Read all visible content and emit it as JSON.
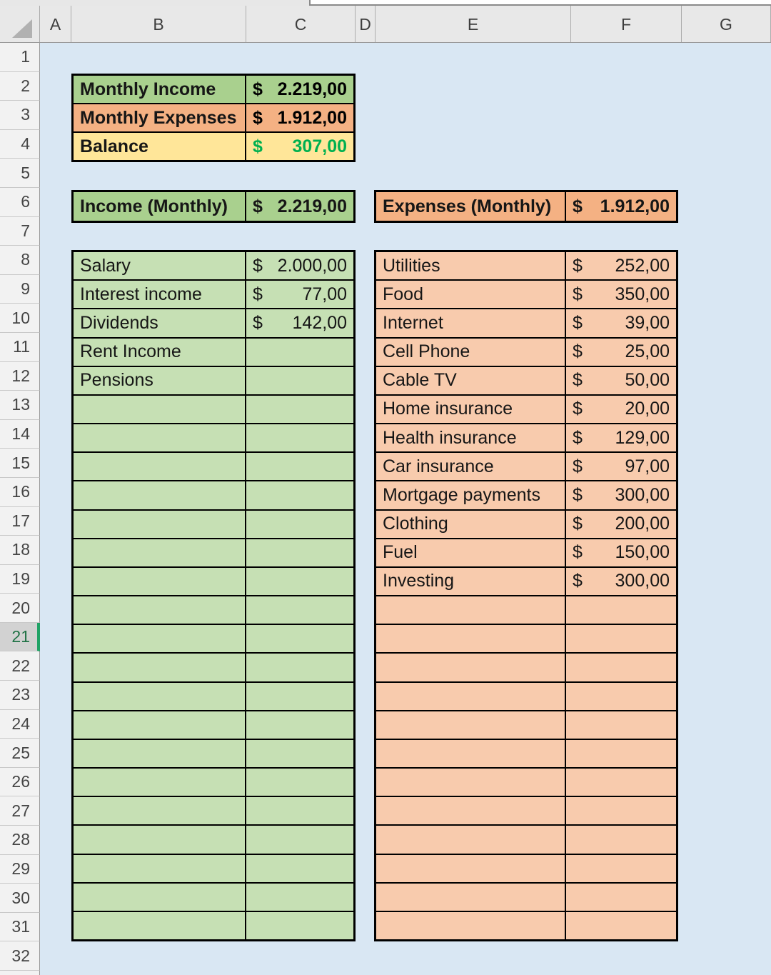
{
  "grid": {
    "column_labels": [
      "A",
      "B",
      "C",
      "D",
      "E",
      "F",
      "G"
    ],
    "row_labels": [
      "1",
      "2",
      "3",
      "4",
      "5",
      "6",
      "7",
      "8",
      "9",
      "10",
      "11",
      "12",
      "13",
      "14",
      "15",
      "16",
      "17",
      "18",
      "19",
      "20",
      "21",
      "22",
      "23",
      "24",
      "25",
      "26",
      "27",
      "28",
      "29",
      "30",
      "31",
      "32"
    ],
    "selected_row": "21"
  },
  "summary": {
    "rows": [
      {
        "label": "Monthly Income",
        "currency": "$",
        "value": "2.219,00",
        "bg": "#a9d08e",
        "value_color": "#000000"
      },
      {
        "label": "Monthly Expenses",
        "currency": "$",
        "value": "1.912,00",
        "bg": "#f4b183",
        "value_color": "#000000"
      },
      {
        "label": "Balance",
        "currency": "$",
        "value": "307,00",
        "bg": "#ffe699",
        "value_color": "#00b050"
      }
    ]
  },
  "income": {
    "header": {
      "label": "Income (Monthly)",
      "currency": "$",
      "value": "2.219,00"
    },
    "row_count": 24,
    "items": [
      {
        "label": "Salary",
        "currency": "$",
        "value": "2.000,00"
      },
      {
        "label": "Interest income",
        "currency": "$",
        "value": "77,00"
      },
      {
        "label": "Dividends",
        "currency": "$",
        "value": "142,00"
      },
      {
        "label": "Rent Income",
        "currency": "",
        "value": ""
      },
      {
        "label": "Pensions",
        "currency": "",
        "value": ""
      }
    ]
  },
  "expenses": {
    "header": {
      "label": "Expenses (Monthly)",
      "currency": "$",
      "value": "1.912,00"
    },
    "row_count": 24,
    "items": [
      {
        "label": "Utilities",
        "currency": "$",
        "value": "252,00"
      },
      {
        "label": "Food",
        "currency": "$",
        "value": "350,00"
      },
      {
        "label": "Internet",
        "currency": "$",
        "value": "39,00"
      },
      {
        "label": "Cell Phone",
        "currency": "$",
        "value": "25,00"
      },
      {
        "label": "Cable TV",
        "currency": "$",
        "value": "50,00"
      },
      {
        "label": "Home insurance",
        "currency": "$",
        "value": "20,00"
      },
      {
        "label": "Health insurance",
        "currency": "$",
        "value": "129,00"
      },
      {
        "label": "Car insurance",
        "currency": "$",
        "value": "97,00"
      },
      {
        "label": "Mortgage payments",
        "currency": "$",
        "value": "300,00"
      },
      {
        "label": "Clothing",
        "currency": "$",
        "value": "200,00"
      },
      {
        "label": "Fuel",
        "currency": "$",
        "value": "150,00"
      },
      {
        "label": "Investing",
        "currency": "$",
        "value": "300,00"
      }
    ]
  },
  "colors": {
    "sheet_bg": "#d9e7f3",
    "header_bg": "#e8e8e8",
    "income_header_bg": "#a9d08e",
    "expenses_header_bg": "#f4b183",
    "income_body_bg": "#c6e0b4",
    "expenses_body_bg": "#f8cbad",
    "balance_bg": "#ffe699",
    "balance_value_text": "#00b050",
    "selected_row_accent": "#21a366",
    "selected_row_text": "#217346",
    "table_border": "#000000"
  }
}
